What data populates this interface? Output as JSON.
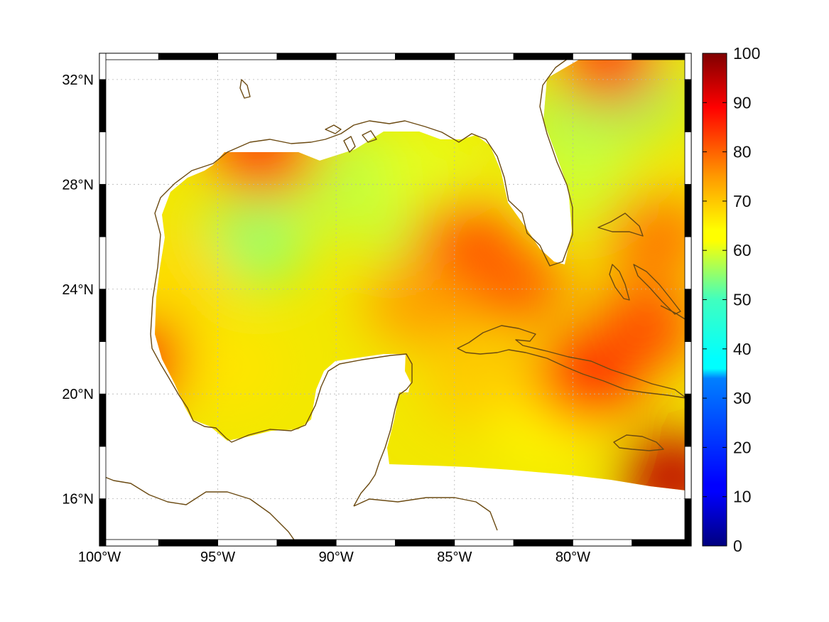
{
  "chart_data": {
    "type": "heatmap",
    "title": "",
    "xlabel": "",
    "ylabel": "",
    "x_range_deg": [
      -100,
      -75
    ],
    "y_range_deg": [
      14.2,
      33
    ],
    "x_ticks": [
      {
        "value": -100,
        "label": "100°W"
      },
      {
        "value": -95,
        "label": "95°W"
      },
      {
        "value": -90,
        "label": "90°W"
      },
      {
        "value": -85,
        "label": "85°W"
      },
      {
        "value": -80,
        "label": "80°W"
      }
    ],
    "y_ticks": [
      {
        "value": 32,
        "label": "32°N"
      },
      {
        "value": 28,
        "label": "28°N"
      },
      {
        "value": 24,
        "label": "24°N"
      },
      {
        "value": 20,
        "label": "20°N"
      },
      {
        "value": 16,
        "label": "16°N"
      }
    ],
    "grid": true,
    "colorbar": {
      "range": [
        0,
        100
      ],
      "ticks": [
        {
          "value": 0,
          "label": "0"
        },
        {
          "value": 10,
          "label": "10"
        },
        {
          "value": 20,
          "label": "20"
        },
        {
          "value": 30,
          "label": "30"
        },
        {
          "value": 40,
          "label": "40"
        },
        {
          "value": 50,
          "label": "50"
        },
        {
          "value": 60,
          "label": "60"
        },
        {
          "value": 70,
          "label": "70"
        },
        {
          "value": 80,
          "label": "80"
        },
        {
          "value": 90,
          "label": "90"
        },
        {
          "value": 100,
          "label": "100"
        }
      ],
      "colormap": "jet",
      "placement": "right"
    },
    "field_regions": [
      {
        "lon": -93.5,
        "lat": 25.8,
        "value": 52
      },
      {
        "lon": -91.0,
        "lat": 27.8,
        "value": 57
      },
      {
        "lon": -88.5,
        "lat": 28.5,
        "value": 56
      },
      {
        "lon": -87.0,
        "lat": 26.5,
        "value": 57
      },
      {
        "lon": -86.0,
        "lat": 28.5,
        "value": 60
      },
      {
        "lon": -93.0,
        "lat": 29.2,
        "value": 82
      },
      {
        "lon": -98.2,
        "lat": 21.2,
        "value": 88
      },
      {
        "lon": -94.5,
        "lat": 21.0,
        "value": 65
      },
      {
        "lon": -96.5,
        "lat": 24.5,
        "value": 66
      },
      {
        "lon": -84.5,
        "lat": 25.8,
        "value": 80
      },
      {
        "lon": -82.5,
        "lat": 24.2,
        "value": 78
      },
      {
        "lon": -86.5,
        "lat": 23.5,
        "value": 72
      },
      {
        "lon": -84.0,
        "lat": 20.5,
        "value": 68
      },
      {
        "lon": -81.0,
        "lat": 19.0,
        "value": 63
      },
      {
        "lon": -79.5,
        "lat": 20.5,
        "value": 84
      },
      {
        "lon": -77.0,
        "lat": 22.5,
        "value": 80
      },
      {
        "lon": -75.8,
        "lat": 16.8,
        "value": 94
      },
      {
        "lon": -80.0,
        "lat": 30.5,
        "value": 55
      },
      {
        "lon": -77.5,
        "lat": 31.5,
        "value": 52
      },
      {
        "lon": -79.5,
        "lat": 28.0,
        "value": 58
      },
      {
        "lon": -76.5,
        "lat": 26.0,
        "value": 76
      },
      {
        "lon": -78.5,
        "lat": 32.6,
        "value": 82
      }
    ],
    "coastline_color": "#6b4a12"
  }
}
